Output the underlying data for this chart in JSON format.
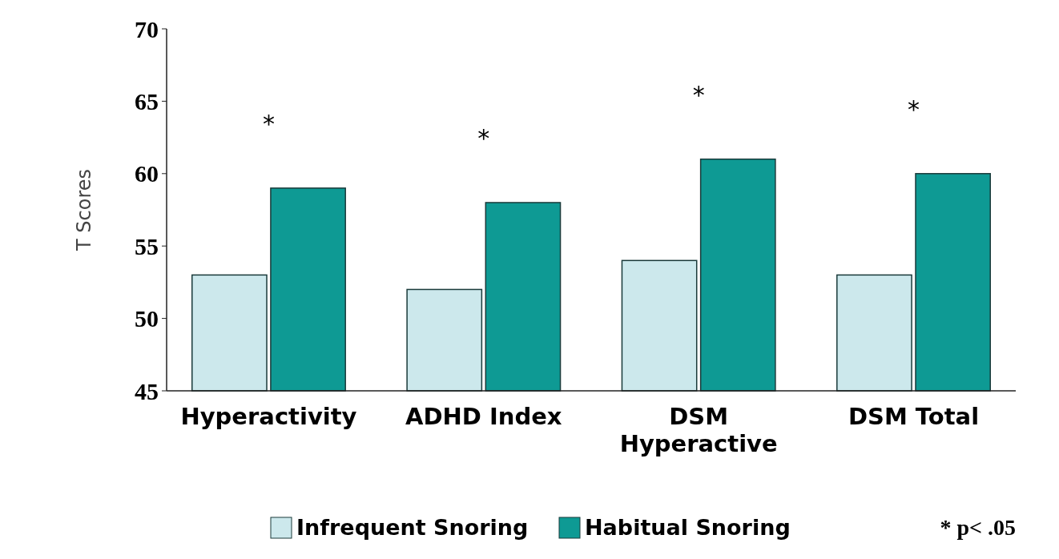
{
  "chart_data": {
    "type": "bar",
    "ylabel": "T Scores",
    "categories": [
      "Hyperactivity",
      "ADHD Index",
      "DSM Hyperactive",
      "DSM Total"
    ],
    "series": [
      {
        "name": "Infrequent Snoring",
        "color": "#cce8ec",
        "values": [
          53,
          52,
          54,
          53
        ]
      },
      {
        "name": "Habitual Snoring",
        "color": "#0e9a94",
        "values": [
          59,
          58,
          61,
          60
        ]
      }
    ],
    "ylim": [
      45,
      70
    ],
    "yticks": [
      45,
      50,
      55,
      60,
      65,
      70
    ],
    "grid": false,
    "legend": "bottom",
    "annotations": [
      "*",
      "*",
      "*",
      "*",
      "* p< .05"
    ]
  }
}
